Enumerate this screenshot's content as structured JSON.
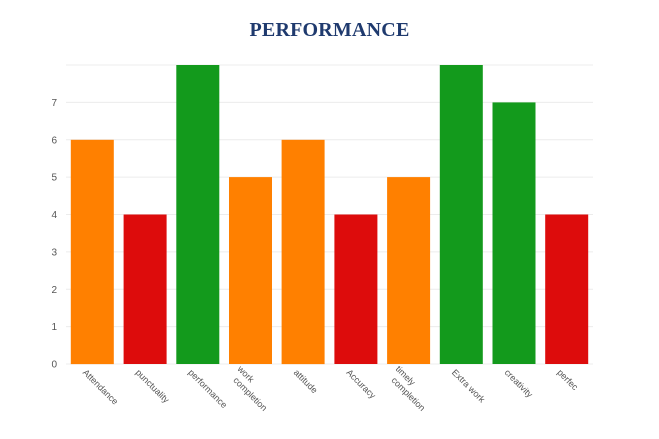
{
  "colors": {
    "title": "#1f3a6e",
    "grid": "#ececec",
    "tick_text": "#555555",
    "orange": "#ff8000",
    "red": "#dd0c0c",
    "green": "#139a1c"
  },
  "chart_data": {
    "type": "bar",
    "title": "PERFORMANCE",
    "xlabel": "",
    "ylabel": "",
    "ylim": [
      0,
      8
    ],
    "yticks": [
      "0",
      "1",
      "2",
      "3",
      "4",
      "5",
      "6",
      "7"
    ],
    "grid": true,
    "legend": "none",
    "categories": [
      [
        "Attendance"
      ],
      [
        "punctuality"
      ],
      [
        "performance"
      ],
      [
        "work",
        "completion"
      ],
      [
        "attitude"
      ],
      [
        "Accuracy"
      ],
      [
        "timely",
        "completion"
      ],
      [
        "Extra work"
      ],
      [
        "creativity"
      ],
      [
        "perfec"
      ]
    ],
    "values": [
      6,
      4,
      8,
      5,
      6,
      4,
      5,
      8,
      7,
      4
    ],
    "bar_colors": [
      "orange",
      "red",
      "green",
      "orange",
      "orange",
      "red",
      "orange",
      "green",
      "green",
      "red"
    ]
  }
}
